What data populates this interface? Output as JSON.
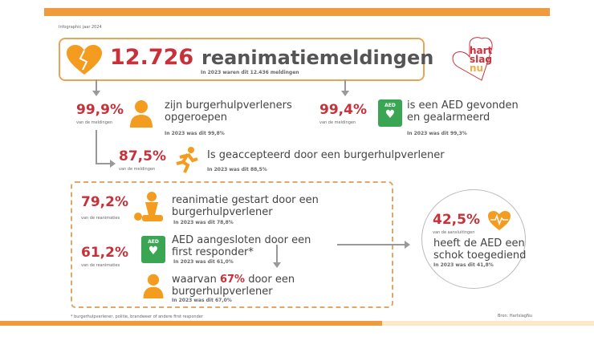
{
  "header": {
    "caption": "Infographic jaar 2024",
    "total": "12.726",
    "total_label": "reanimatiemeldingen",
    "total_prev": "In 2023 waren dit 12.436 meldingen"
  },
  "logo": {
    "line1": "hart",
    "line2": "slag",
    "line3": "nu"
  },
  "stats": [
    {
      "pct": "99,9%",
      "caption": "van de meldingen",
      "text1": "zijn burgerhulpverleners",
      "text2": "opgeroepen",
      "prev": "In 2023 was dit 99,8%"
    },
    {
      "pct": "99,4%",
      "caption": "van de meldingen",
      "text1": "is een AED gevonden",
      "text2": "en gealarmeerd",
      "prev": "In 2023 was dit 99,3%"
    },
    {
      "pct": "87,5%",
      "caption": "van de meldingen",
      "text1": "Is geaccepteerd door een burgerhulpverlener",
      "prev": "In 2023 was dit 88,5%"
    },
    {
      "pct": "79,2%",
      "caption": "van de reanimaties",
      "text1": "reanimatie gestart door een",
      "text2": "burgerhulpverlener",
      "prev": "In 2023 was dit 78,8%"
    },
    {
      "pct": "61,2%",
      "caption": "van de reanimaties",
      "text1": "AED aangesloten door een",
      "text2": "first responder*",
      "prev": "In 2023 was dit 61,0%"
    },
    {
      "text_pre": "waarvan ",
      "pct": "67%",
      "text_post": " door een",
      "text2": "burgerhulpverlener",
      "prev": "In 2023 was dit 67,0%"
    },
    {
      "pct": "42,5%",
      "caption": "van de aansluitingen",
      "text1": "heeft de AED een",
      "text2": "schok toegediend",
      "prev": "In 2023 was dit 41,8%"
    }
  ],
  "aed_label": "AED",
  "footer": {
    "note": "* burgerhulpverlener, politie, brandweer of andere first responder",
    "source": "Bron: HartslagNu"
  },
  "colors": {
    "accent": "#ef9a3c",
    "red": "#c8303a",
    "green": "#3aa552"
  }
}
